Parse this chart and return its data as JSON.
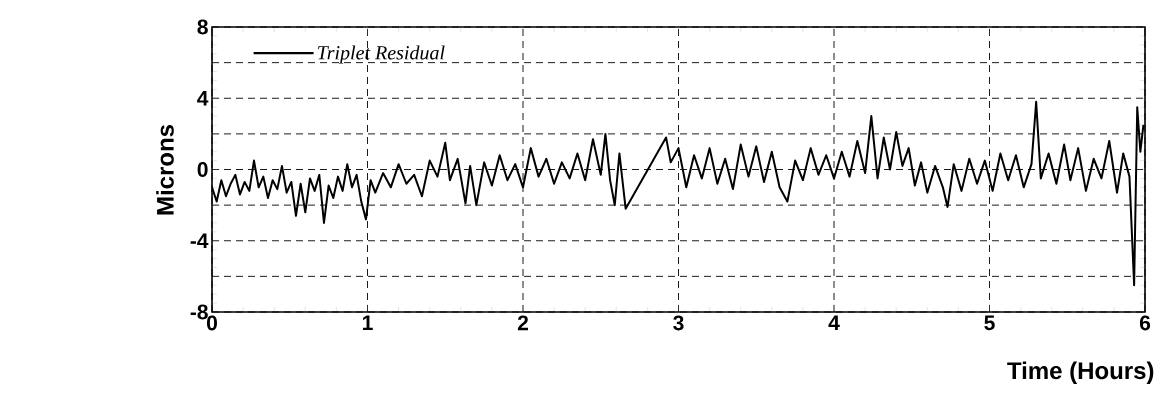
{
  "chart_data": {
    "type": "line",
    "xlabel": "Time (Hours)",
    "ylabel": "Microns",
    "xlim": [
      0,
      6
    ],
    "ylim": [
      -8,
      8
    ],
    "xticks": [
      0,
      1,
      2,
      3,
      4,
      5,
      6
    ],
    "yticks": [
      -8,
      {
        "value": -6,
        "label": null
      },
      -4,
      {
        "value": -2,
        "label": null
      },
      0,
      {
        "value": 2,
        "label": null
      },
      4,
      {
        "value": 6,
        "label": null
      },
      8
    ],
    "grid": true,
    "legend": "top left",
    "marker": "none",
    "line_style": "solid",
    "series": [
      {
        "name": "Triplet Residual",
        "color": "#000000",
        "x": [
          0.0,
          0.03,
          0.06,
          0.09,
          0.12,
          0.15,
          0.18,
          0.21,
          0.24,
          0.27,
          0.3,
          0.33,
          0.36,
          0.39,
          0.42,
          0.45,
          0.48,
          0.51,
          0.54,
          0.57,
          0.6,
          0.63,
          0.66,
          0.69,
          0.72,
          0.75,
          0.78,
          0.81,
          0.84,
          0.87,
          0.9,
          0.93,
          0.96,
          0.99,
          1.02,
          1.05,
          1.1,
          1.15,
          1.2,
          1.25,
          1.3,
          1.35,
          1.4,
          1.45,
          1.5,
          1.53,
          1.58,
          1.63,
          1.66,
          1.7,
          1.75,
          1.8,
          1.85,
          1.9,
          1.95,
          2.0,
          2.05,
          2.1,
          2.15,
          2.2,
          2.25,
          2.3,
          2.35,
          2.4,
          2.45,
          2.5,
          2.53,
          2.56,
          2.59,
          2.62,
          2.66,
          2.92,
          2.95,
          3.0,
          3.05,
          3.1,
          3.15,
          3.2,
          3.25,
          3.3,
          3.35,
          3.4,
          3.45,
          3.5,
          3.55,
          3.6,
          3.65,
          3.7,
          3.75,
          3.8,
          3.85,
          3.9,
          3.95,
          4.0,
          4.05,
          4.1,
          4.15,
          4.2,
          4.24,
          4.28,
          4.32,
          4.36,
          4.4,
          4.44,
          4.48,
          4.52,
          4.56,
          4.6,
          4.65,
          4.7,
          4.73,
          4.77,
          4.82,
          4.87,
          4.92,
          4.97,
          5.02,
          5.07,
          5.12,
          5.17,
          5.22,
          5.27,
          5.3,
          5.33,
          5.38,
          5.43,
          5.48,
          5.52,
          5.57,
          5.62,
          5.67,
          5.72,
          5.77,
          5.82,
          5.86,
          5.9,
          5.93,
          5.95,
          5.97,
          5.99
        ],
        "values": [
          -1.0,
          -1.8,
          -0.6,
          -1.5,
          -0.8,
          -0.3,
          -1.4,
          -0.7,
          -1.2,
          0.5,
          -1.0,
          -0.4,
          -1.6,
          -0.6,
          -1.1,
          0.2,
          -1.3,
          -0.7,
          -2.6,
          -0.8,
          -2.4,
          -0.5,
          -1.2,
          -0.3,
          -3.0,
          -0.9,
          -1.6,
          -0.4,
          -1.2,
          0.3,
          -1.0,
          -0.3,
          -1.8,
          -2.8,
          -0.6,
          -1.3,
          -0.2,
          -1.0,
          0.3,
          -0.8,
          -0.3,
          -1.5,
          0.5,
          -0.4,
          1.5,
          -0.6,
          0.6,
          -1.9,
          0.2,
          -2.0,
          0.4,
          -0.9,
          0.8,
          -0.6,
          0.3,
          -1.0,
          1.2,
          -0.4,
          0.6,
          -0.8,
          0.4,
          -0.5,
          0.9,
          -0.6,
          1.7,
          -0.3,
          2.0,
          -0.6,
          -2.0,
          0.9,
          -2.2,
          1.8,
          0.4,
          1.2,
          -1.0,
          0.8,
          -0.5,
          1.2,
          -0.8,
          0.6,
          -1.1,
          1.4,
          -0.4,
          1.3,
          -0.7,
          1.0,
          -1.0,
          -1.8,
          0.5,
          -0.6,
          1.2,
          -0.3,
          0.8,
          -0.5,
          1.0,
          -0.4,
          1.6,
          -0.2,
          3.0,
          -0.5,
          1.8,
          0.0,
          2.1,
          0.2,
          1.2,
          -0.9,
          0.4,
          -1.3,
          0.2,
          -1.0,
          -2.1,
          0.3,
          -1.2,
          0.6,
          -0.8,
          0.5,
          -1.2,
          0.9,
          -0.6,
          0.8,
          -1.0,
          0.3,
          3.8,
          -0.5,
          0.9,
          -0.8,
          1.4,
          -0.6,
          1.2,
          -1.2,
          0.6,
          -0.5,
          1.6,
          -1.3,
          0.9,
          -0.4,
          -6.5,
          3.5,
          1.0,
          2.5
        ]
      }
    ]
  }
}
